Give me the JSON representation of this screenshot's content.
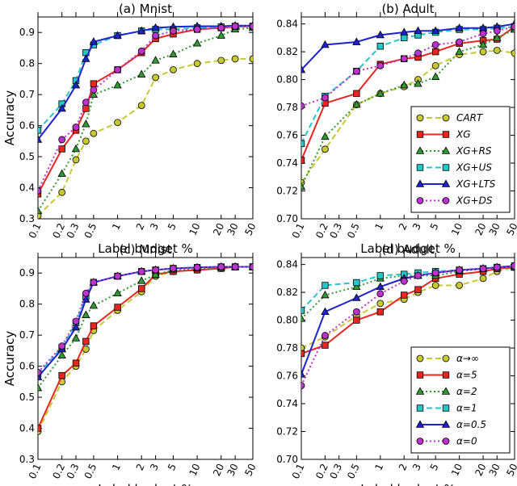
{
  "colors": {
    "cart": "#c8c832",
    "xg": "#e8251f",
    "xgrs": "#339933",
    "xgus": "#27c6c6",
    "xglts": "#1e22cc",
    "xgds": "#bb33cc"
  },
  "x_tick_labels": [
    "0.1",
    "0.2",
    "0.3",
    "0.5",
    "1",
    "2",
    "3",
    "5",
    "10",
    "20",
    "30",
    "50"
  ],
  "chart_data": [
    {
      "id": "a",
      "type": "line",
      "title": "(a) Mnist",
      "xlabel": "Label budget %",
      "ylabel": "Accuracy",
      "xscale": "log",
      "xlim": [
        0.1,
        50
      ],
      "ylim": [
        0.3,
        0.95
      ],
      "yticks": [
        0.3,
        0.4,
        0.5,
        0.6,
        0.7,
        0.8,
        0.9
      ],
      "ytick_labels": [
        "0.3",
        "0.4",
        "0.5",
        "0.6",
        "0.7",
        "0.8",
        "0.9"
      ],
      "x": [
        0.1,
        0.2,
        0.3,
        0.4,
        0.5,
        1,
        2,
        3,
        5,
        10,
        20,
        30,
        50
      ],
      "series": [
        {
          "name": "CART",
          "color_key": "cart",
          "style": "dashed",
          "marker": "circle",
          "values": [
            0.31,
            0.385,
            0.49,
            0.55,
            0.575,
            0.61,
            0.665,
            0.755,
            0.78,
            0.8,
            0.81,
            0.815,
            0.815
          ]
        },
        {
          "name": "XG",
          "color_key": "xg",
          "style": "solid",
          "marker": "square",
          "values": [
            0.38,
            0.525,
            0.585,
            0.655,
            0.735,
            0.78,
            0.835,
            0.88,
            0.895,
            0.91,
            0.915,
            0.918,
            0.92
          ]
        },
        {
          "name": "XG+RS",
          "color_key": "xgrs",
          "style": "dotted",
          "marker": "triangle",
          "values": [
            0.325,
            0.445,
            0.525,
            0.605,
            0.7,
            0.73,
            0.765,
            0.81,
            0.83,
            0.865,
            0.89,
            0.91,
            0.915
          ]
        },
        {
          "name": "XG+US",
          "color_key": "xgus",
          "style": "dashed",
          "marker": "square",
          "values": [
            0.585,
            0.67,
            0.745,
            0.835,
            0.86,
            0.89,
            0.905,
            0.91,
            0.91,
            0.915,
            0.918,
            0.92,
            0.92
          ]
        },
        {
          "name": "XG+LTS",
          "color_key": "xglts",
          "style": "solid",
          "marker": "triangle",
          "values": [
            0.555,
            0.655,
            0.73,
            0.815,
            0.87,
            0.89,
            0.905,
            0.915,
            0.918,
            0.92,
            0.92,
            0.922,
            0.922
          ]
        },
        {
          "name": "XG+DS",
          "color_key": "xgds",
          "style": "dotted",
          "marker": "circle",
          "values": [
            0.39,
            0.555,
            0.595,
            0.675,
            0.715,
            0.78,
            0.84,
            0.89,
            0.905,
            0.91,
            0.915,
            0.92,
            0.92
          ]
        }
      ]
    },
    {
      "id": "b",
      "type": "line",
      "title": "(b) Adult",
      "xlabel": "Label budget %",
      "ylabel": "",
      "xscale": "log",
      "xlim": [
        0.1,
        50
      ],
      "ylim": [
        0.7,
        0.845
      ],
      "yticks": [
        0.7,
        0.72,
        0.74,
        0.76,
        0.78,
        0.8,
        0.82,
        0.84
      ],
      "ytick_labels": [
        "0.70",
        "0.72",
        "0.74",
        "0.76",
        "0.78",
        "0.80",
        "0.82",
        "0.84"
      ],
      "x": [
        0.1,
        0.2,
        0.5,
        1,
        2,
        3,
        5,
        10,
        20,
        30,
        50
      ],
      "legend": "lower-right",
      "series": [
        {
          "name": "CART",
          "label": "CART",
          "color_key": "cart",
          "style": "dashed",
          "marker": "circle",
          "values": [
            0.726,
            0.75,
            0.782,
            0.79,
            0.795,
            0.8,
            0.81,
            0.818,
            0.82,
            0.821,
            0.819
          ]
        },
        {
          "name": "XG",
          "label": "XG",
          "color_key": "xg",
          "style": "solid",
          "marker": "square",
          "values": [
            0.742,
            0.783,
            0.79,
            0.811,
            0.815,
            0.816,
            0.82,
            0.826,
            0.828,
            0.829,
            0.838
          ]
        },
        {
          "name": "XG+RS",
          "label": "XG+RS",
          "color_key": "xgrs",
          "style": "dotted",
          "marker": "triangle",
          "values": [
            0.723,
            0.759,
            0.782,
            0.79,
            0.796,
            0.797,
            0.802,
            0.82,
            0.825,
            0.83,
            0.836
          ]
        },
        {
          "name": "XG+US",
          "label": "XG+US",
          "color_key": "xgus",
          "style": "dashed",
          "marker": "square",
          "values": [
            0.754,
            0.788,
            0.806,
            0.824,
            0.83,
            0.832,
            0.834,
            0.836,
            0.836,
            0.837,
            0.838
          ]
        },
        {
          "name": "XG+LTS",
          "label": "XG+LTS",
          "color_key": "xglts",
          "style": "solid",
          "marker": "triangle",
          "values": [
            0.807,
            0.825,
            0.827,
            0.832,
            0.834,
            0.835,
            0.835,
            0.837,
            0.837,
            0.838,
            0.84
          ]
        },
        {
          "name": "XG+DS",
          "label": "XG+DS",
          "color_key": "xgds",
          "style": "dotted",
          "marker": "circle",
          "values": [
            0.781,
            0.787,
            0.806,
            0.81,
            0.815,
            0.819,
            0.825,
            0.827,
            0.833,
            0.835,
            0.838
          ]
        }
      ]
    },
    {
      "id": "c",
      "type": "line",
      "title": "(c) Mnist",
      "xlabel": "Label budget %",
      "ylabel": "Accuracy",
      "xscale": "log",
      "xlim": [
        0.1,
        50
      ],
      "ylim": [
        0.3,
        0.95
      ],
      "yticks": [
        0.3,
        0.4,
        0.5,
        0.6,
        0.7,
        0.8,
        0.9
      ],
      "ytick_labels": [
        "0.3",
        "0.4",
        "0.5",
        "0.6",
        "0.7",
        "0.8",
        "0.9"
      ],
      "x": [
        0.1,
        0.2,
        0.3,
        0.4,
        0.5,
        1,
        2,
        3,
        5,
        10,
        20,
        30,
        50
      ],
      "series": [
        {
          "name": "alpha-inf",
          "color_key": "cart",
          "style": "dashed",
          "marker": "circle",
          "values": [
            0.39,
            0.55,
            0.6,
            0.655,
            0.715,
            0.78,
            0.84,
            0.89,
            0.905,
            0.91,
            0.915,
            0.92,
            0.92
          ]
        },
        {
          "name": "alpha-5",
          "color_key": "xg",
          "style": "solid",
          "marker": "square",
          "values": [
            0.4,
            0.57,
            0.61,
            0.68,
            0.73,
            0.79,
            0.85,
            0.895,
            0.905,
            0.91,
            0.915,
            0.92,
            0.92
          ]
        },
        {
          "name": "alpha-2",
          "color_key": "xgrs",
          "style": "dotted",
          "marker": "triangle",
          "values": [
            0.53,
            0.635,
            0.69,
            0.765,
            0.795,
            0.835,
            0.875,
            0.895,
            0.91,
            0.915,
            0.918,
            0.92,
            0.92
          ]
        },
        {
          "name": "alpha-1",
          "color_key": "xgus",
          "style": "dashed",
          "marker": "square",
          "values": [
            0.575,
            0.66,
            0.74,
            0.825,
            0.87,
            0.89,
            0.905,
            0.91,
            0.915,
            0.918,
            0.92,
            0.92,
            0.92
          ]
        },
        {
          "name": "alpha-0.5",
          "color_key": "xglts",
          "style": "solid",
          "marker": "triangle",
          "values": [
            0.565,
            0.655,
            0.725,
            0.815,
            0.87,
            0.89,
            0.905,
            0.91,
            0.915,
            0.918,
            0.92,
            0.92,
            0.92
          ]
        },
        {
          "name": "alpha-0",
          "color_key": "xgds",
          "style": "dotted",
          "marker": "circle",
          "values": [
            0.58,
            0.665,
            0.745,
            0.835,
            0.87,
            0.89,
            0.905,
            0.91,
            0.915,
            0.918,
            0.92,
            0.92,
            0.92
          ]
        }
      ]
    },
    {
      "id": "d",
      "type": "line",
      "title": "(d) Adult",
      "xlabel": "Label budget %",
      "ylabel": "",
      "xscale": "log",
      "xlim": [
        0.1,
        50
      ],
      "ylim": [
        0.7,
        0.845
      ],
      "yticks": [
        0.7,
        0.72,
        0.74,
        0.76,
        0.78,
        0.8,
        0.82,
        0.84
      ],
      "ytick_labels": [
        "0.70",
        "0.72",
        "0.74",
        "0.76",
        "0.78",
        "0.80",
        "0.82",
        "0.84"
      ],
      "x": [
        0.1,
        0.2,
        0.5,
        1,
        2,
        3,
        5,
        10,
        20,
        30,
        50
      ],
      "legend": "lower-right",
      "series": [
        {
          "name": "alpha-inf",
          "label": "α→∞",
          "color_key": "cart",
          "style": "dashed",
          "marker": "circle",
          "values": [
            0.78,
            0.788,
            0.803,
            0.812,
            0.815,
            0.82,
            0.825,
            0.825,
            0.83,
            0.835,
            0.838
          ]
        },
        {
          "name": "alpha-5",
          "label": "α=5",
          "color_key": "xg",
          "style": "solid",
          "marker": "square",
          "values": [
            0.776,
            0.782,
            0.8,
            0.806,
            0.818,
            0.822,
            0.83,
            0.833,
            0.835,
            0.837,
            0.838
          ]
        },
        {
          "name": "alpha-2",
          "label": "α=2",
          "color_key": "xgrs",
          "style": "dotted",
          "marker": "triangle",
          "values": [
            0.801,
            0.818,
            0.824,
            0.83,
            0.832,
            0.832,
            0.832,
            0.835,
            0.837,
            0.838,
            0.838
          ]
        },
        {
          "name": "alpha-1",
          "label": "α=1",
          "color_key": "xgus",
          "style": "dashed",
          "marker": "square",
          "values": [
            0.807,
            0.825,
            0.827,
            0.832,
            0.833,
            0.834,
            0.835,
            0.836,
            0.837,
            0.838,
            0.839
          ]
        },
        {
          "name": "alpha-0.5",
          "label": "α=0.5",
          "color_key": "xglts",
          "style": "solid",
          "marker": "triangle",
          "values": [
            0.761,
            0.806,
            0.816,
            0.824,
            0.83,
            0.832,
            0.834,
            0.836,
            0.837,
            0.838,
            0.839
          ]
        },
        {
          "name": "alpha-0",
          "label": "α=0",
          "color_key": "xgds",
          "style": "dotted",
          "marker": "circle",
          "values": [
            0.753,
            0.789,
            0.806,
            0.819,
            0.828,
            0.832,
            0.834,
            0.836,
            0.837,
            0.838,
            0.839
          ]
        }
      ]
    }
  ]
}
